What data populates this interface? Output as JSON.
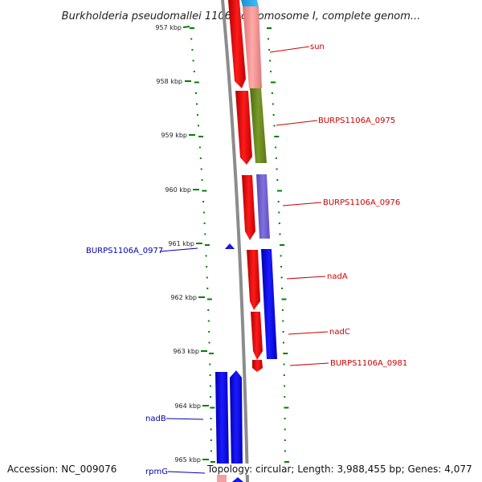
{
  "title": "Burkholderia pseudomallei 1106a chromosome I, complete genom...",
  "accession": "Accession: NC_009076",
  "topology": "Topology: circular; Length: 3,988,455 bp; Genes: 4,077",
  "colors": {
    "forward": "#ff0000",
    "reverse": "#0000ff",
    "forward_label": "#cc0000",
    "reverse_label": "#0000aa",
    "olive": "#6b8e23",
    "purple": "#6a5acd",
    "salmon": "#f08080",
    "tick": "#008000"
  },
  "kbp_ticks": [
    "957 kbp",
    "958 kbp",
    "959 kbp",
    "960 kbp",
    "961 kbp",
    "962 kbp",
    "963 kbp",
    "964 kbp",
    "965 kbp"
  ],
  "genes": [
    {
      "name": "sun",
      "strand": "forward"
    },
    {
      "name": "BURPS1106A_0975",
      "strand": "forward"
    },
    {
      "name": "BURPS1106A_0976",
      "strand": "forward"
    },
    {
      "name": "BURPS1106A_0977",
      "strand": "reverse"
    },
    {
      "name": "nadA",
      "strand": "forward"
    },
    {
      "name": "nadC",
      "strand": "forward"
    },
    {
      "name": "BURPS1106A_0981",
      "strand": "forward"
    },
    {
      "name": "nadB",
      "strand": "reverse"
    },
    {
      "name": "rpmG",
      "strand": "reverse"
    }
  ]
}
